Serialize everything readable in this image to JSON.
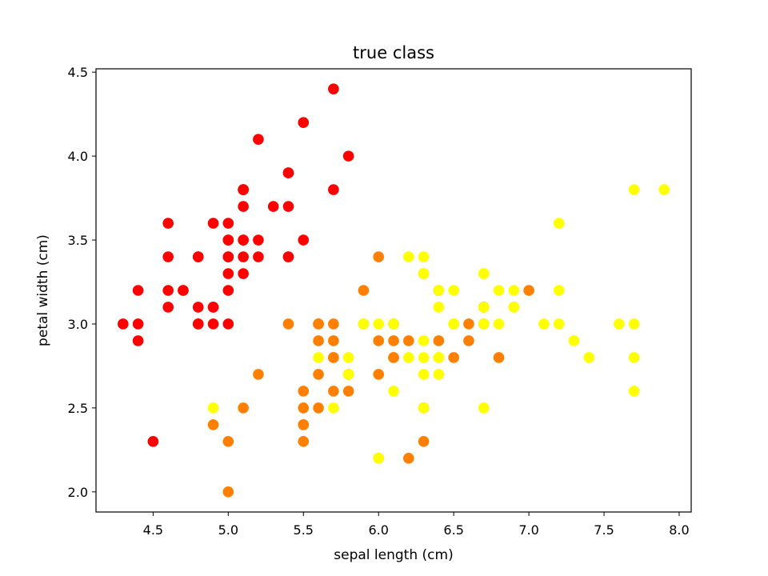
{
  "chart_data": {
    "type": "scatter",
    "title": "true class",
    "xlabel": "sepal length (cm)",
    "ylabel": "petal width (cm)",
    "xlim": [
      4.12,
      8.08
    ],
    "ylim": [
      1.88,
      4.52
    ],
    "xticks": [
      4.5,
      5.0,
      5.5,
      6.0,
      6.5,
      7.0,
      7.5,
      8.0
    ],
    "xtick_labels": [
      "4.5",
      "5.0",
      "5.5",
      "6.0",
      "6.5",
      "7.0",
      "7.5",
      "8.0"
    ],
    "yticks": [
      2.0,
      2.5,
      3.0,
      3.5,
      4.0,
      4.5
    ],
    "ytick_labels": [
      "2.0",
      "2.5",
      "3.0",
      "3.5",
      "4.0",
      "4.5"
    ],
    "grid": false,
    "series": [
      {
        "color": "#ff0000",
        "points": [
          [
            5.1,
            3.5
          ],
          [
            4.9,
            3.0
          ],
          [
            4.7,
            3.2
          ],
          [
            4.6,
            3.1
          ],
          [
            5.0,
            3.6
          ],
          [
            5.4,
            3.9
          ],
          [
            4.6,
            3.4
          ],
          [
            5.0,
            3.4
          ],
          [
            4.4,
            2.9
          ],
          [
            4.9,
            3.1
          ],
          [
            5.4,
            3.7
          ],
          [
            4.8,
            3.4
          ],
          [
            4.8,
            3.0
          ],
          [
            4.3,
            3.0
          ],
          [
            5.8,
            4.0
          ],
          [
            5.7,
            4.4
          ],
          [
            5.4,
            3.9
          ],
          [
            5.1,
            3.5
          ],
          [
            5.7,
            3.8
          ],
          [
            5.1,
            3.8
          ],
          [
            5.4,
            3.4
          ],
          [
            5.1,
            3.7
          ],
          [
            4.6,
            3.6
          ],
          [
            5.1,
            3.3
          ],
          [
            4.8,
            3.4
          ],
          [
            5.0,
            3.0
          ],
          [
            5.0,
            3.4
          ],
          [
            5.2,
            3.5
          ],
          [
            5.2,
            3.4
          ],
          [
            4.7,
            3.2
          ],
          [
            4.8,
            3.1
          ],
          [
            5.4,
            3.4
          ],
          [
            5.2,
            4.1
          ],
          [
            5.5,
            4.2
          ],
          [
            4.9,
            3.1
          ],
          [
            5.0,
            3.2
          ],
          [
            5.5,
            3.5
          ],
          [
            4.9,
            3.6
          ],
          [
            4.4,
            3.0
          ],
          [
            5.1,
            3.4
          ],
          [
            5.0,
            3.5
          ],
          [
            4.5,
            2.3
          ],
          [
            4.4,
            3.2
          ],
          [
            5.0,
            3.5
          ],
          [
            5.1,
            3.8
          ],
          [
            4.8,
            3.0
          ],
          [
            5.1,
            3.8
          ],
          [
            4.6,
            3.2
          ],
          [
            5.3,
            3.7
          ],
          [
            5.0,
            3.3
          ]
        ]
      },
      {
        "color": "#ff8000",
        "points": [
          [
            7.0,
            3.2
          ],
          [
            6.4,
            3.2
          ],
          [
            6.9,
            3.1
          ],
          [
            5.5,
            2.3
          ],
          [
            6.5,
            2.8
          ],
          [
            5.7,
            2.8
          ],
          [
            6.3,
            3.3
          ],
          [
            4.9,
            2.4
          ],
          [
            6.6,
            2.9
          ],
          [
            5.2,
            2.7
          ],
          [
            5.0,
            2.0
          ],
          [
            5.9,
            3.0
          ],
          [
            6.0,
            2.2
          ],
          [
            6.1,
            2.9
          ],
          [
            5.6,
            2.9
          ],
          [
            6.7,
            3.1
          ],
          [
            5.6,
            3.0
          ],
          [
            5.8,
            2.7
          ],
          [
            6.2,
            2.2
          ],
          [
            5.6,
            2.5
          ],
          [
            5.9,
            3.2
          ],
          [
            6.1,
            2.8
          ],
          [
            6.3,
            2.5
          ],
          [
            6.1,
            2.8
          ],
          [
            6.4,
            2.9
          ],
          [
            6.6,
            3.0
          ],
          [
            6.8,
            2.8
          ],
          [
            6.7,
            3.0
          ],
          [
            6.0,
            2.9
          ],
          [
            5.7,
            2.6
          ],
          [
            5.5,
            2.4
          ],
          [
            5.5,
            2.4
          ],
          [
            5.8,
            2.7
          ],
          [
            6.0,
            2.7
          ],
          [
            5.4,
            3.0
          ],
          [
            6.0,
            3.4
          ],
          [
            6.7,
            3.1
          ],
          [
            6.3,
            2.3
          ],
          [
            5.6,
            3.0
          ],
          [
            5.5,
            2.5
          ],
          [
            5.5,
            2.6
          ],
          [
            6.1,
            3.0
          ],
          [
            5.8,
            2.6
          ],
          [
            5.0,
            2.3
          ],
          [
            5.6,
            2.7
          ],
          [
            5.7,
            3.0
          ],
          [
            5.7,
            2.9
          ],
          [
            6.2,
            2.9
          ],
          [
            5.1,
            2.5
          ],
          [
            5.7,
            2.8
          ]
        ]
      },
      {
        "color": "#ffff00",
        "points": [
          [
            6.3,
            3.3
          ],
          [
            5.8,
            2.7
          ],
          [
            7.1,
            3.0
          ],
          [
            6.3,
            2.9
          ],
          [
            6.5,
            3.0
          ],
          [
            7.6,
            3.0
          ],
          [
            4.9,
            2.5
          ],
          [
            7.3,
            2.9
          ],
          [
            6.7,
            2.5
          ],
          [
            7.2,
            3.6
          ],
          [
            6.5,
            3.2
          ],
          [
            6.4,
            2.7
          ],
          [
            6.8,
            3.0
          ],
          [
            5.7,
            2.5
          ],
          [
            5.8,
            2.8
          ],
          [
            6.4,
            3.2
          ],
          [
            6.5,
            3.0
          ],
          [
            7.7,
            3.8
          ],
          [
            7.7,
            2.6
          ],
          [
            6.0,
            2.2
          ],
          [
            6.9,
            3.2
          ],
          [
            5.6,
            2.8
          ],
          [
            7.7,
            2.8
          ],
          [
            6.3,
            2.7
          ],
          [
            6.7,
            3.3
          ],
          [
            7.2,
            3.2
          ],
          [
            6.2,
            2.8
          ],
          [
            6.1,
            3.0
          ],
          [
            6.4,
            2.8
          ],
          [
            7.2,
            3.0
          ],
          [
            7.4,
            2.8
          ],
          [
            7.9,
            3.8
          ],
          [
            6.4,
            2.8
          ],
          [
            6.3,
            2.8
          ],
          [
            6.1,
            2.6
          ],
          [
            7.7,
            3.0
          ],
          [
            6.3,
            3.4
          ],
          [
            6.4,
            3.1
          ],
          [
            6.0,
            3.0
          ],
          [
            6.9,
            3.1
          ],
          [
            6.7,
            3.1
          ],
          [
            6.9,
            3.1
          ],
          [
            5.8,
            2.7
          ],
          [
            6.8,
            3.2
          ],
          [
            6.7,
            3.3
          ],
          [
            6.7,
            3.0
          ],
          [
            6.3,
            2.5
          ],
          [
            6.5,
            3.0
          ],
          [
            6.2,
            3.4
          ],
          [
            5.9,
            3.0
          ]
        ]
      }
    ]
  }
}
